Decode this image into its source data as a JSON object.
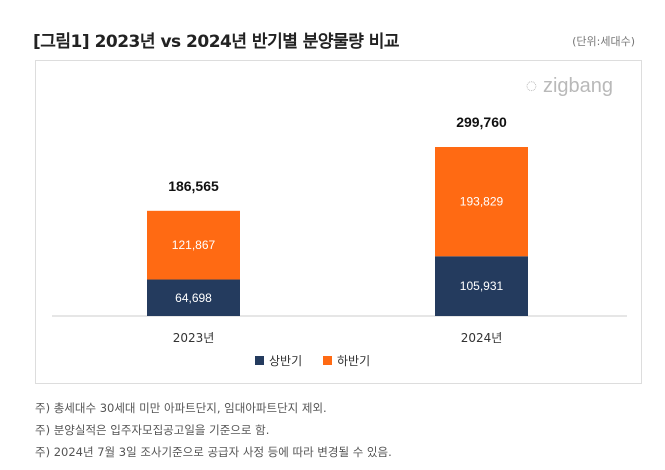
{
  "title": "[그림1] 2023년 vs 2024년 반기별 분양물량 비교",
  "unit": "(단위:세대수)",
  "logo": "zigbang",
  "notes": [
    "주) 총세대수 30세대 미만 아파트단지, 임대아파트단지 제외.",
    "주) 분양실적은 입주자모집공고일을 기준으로 함.",
    "주)  2024년 7월 3일 조사기준으로 공급자 사정 등에 따라 변경될 수 있음."
  ],
  "chart_data": {
    "type": "bar",
    "stacked": true,
    "categories": [
      "2023년",
      "2024년"
    ],
    "series": [
      {
        "name": "상반기",
        "values": [
          64698,
          105931
        ],
        "color": "#243B5E"
      },
      {
        "name": "하반기",
        "values": [
          121867,
          193829
        ],
        "color": "#FF6A13"
      }
    ],
    "totals": [
      "186,565",
      "299,760"
    ],
    "labels": [
      [
        "64,698",
        "105,931"
      ],
      [
        "121,867",
        "193,829"
      ]
    ],
    "ylim": [
      0,
      300000
    ],
    "legend": "bottom",
    "grid": false
  }
}
